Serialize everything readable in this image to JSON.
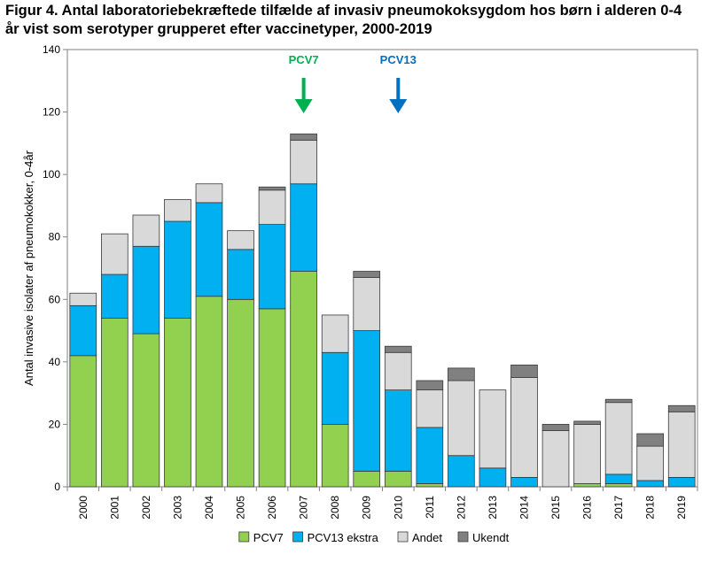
{
  "title_line1": "Figur 4. Antal laboratoriebekræftede tilfælde af invasiv pneumokoksygdom hos børn i alderen 0-4",
  "title_line2": "år vist som serotyper grupperet efter vaccinetyper, 2000-2019",
  "chart_data": {
    "type": "bar",
    "stacked": true,
    "categories": [
      "2000",
      "2001",
      "2002",
      "2003",
      "2004",
      "2005",
      "2006",
      "2007",
      "2008",
      "2009",
      "2010",
      "2011",
      "2012",
      "2013",
      "2014",
      "2015",
      "2016",
      "2017",
      "2018",
      "2019"
    ],
    "series": [
      {
        "name": "PCV7",
        "color": "#92D050",
        "values": [
          42,
          54,
          49,
          54,
          61,
          60,
          57,
          69,
          20,
          5,
          5,
          1,
          0,
          0,
          0,
          0,
          1,
          1,
          0,
          0
        ]
      },
      {
        "name": "PCV13 ekstra",
        "color": "#00B0F0",
        "values": [
          16,
          14,
          28,
          31,
          30,
          16,
          27,
          28,
          23,
          45,
          26,
          18,
          10,
          6,
          3,
          0,
          0,
          3,
          2,
          3
        ]
      },
      {
        "name": "Andet",
        "color": "#D9D9D9",
        "values": [
          4,
          13,
          10,
          7,
          6,
          6,
          11,
          14,
          12,
          17,
          12,
          12,
          24,
          25,
          32,
          18,
          19,
          23,
          11,
          21
        ]
      },
      {
        "name": "Ukendt",
        "color": "#808080",
        "values": [
          0,
          0,
          0,
          0,
          0,
          0,
          1,
          2,
          0,
          2,
          2,
          3,
          4,
          0,
          4,
          2,
          1,
          1,
          4,
          2
        ]
      }
    ],
    "ylabel": "Antal invasive isolater af pneumokokker, 0-4år",
    "ylim": [
      0,
      140
    ],
    "yticks": [
      0,
      20,
      40,
      60,
      80,
      100,
      120,
      140
    ],
    "legend_position": "bottom",
    "annotations": [
      {
        "text": "PCV7",
        "category": "2007",
        "color": "#00B050"
      },
      {
        "text": "PCV13",
        "category": "2010",
        "color": "#0070C0"
      }
    ]
  }
}
